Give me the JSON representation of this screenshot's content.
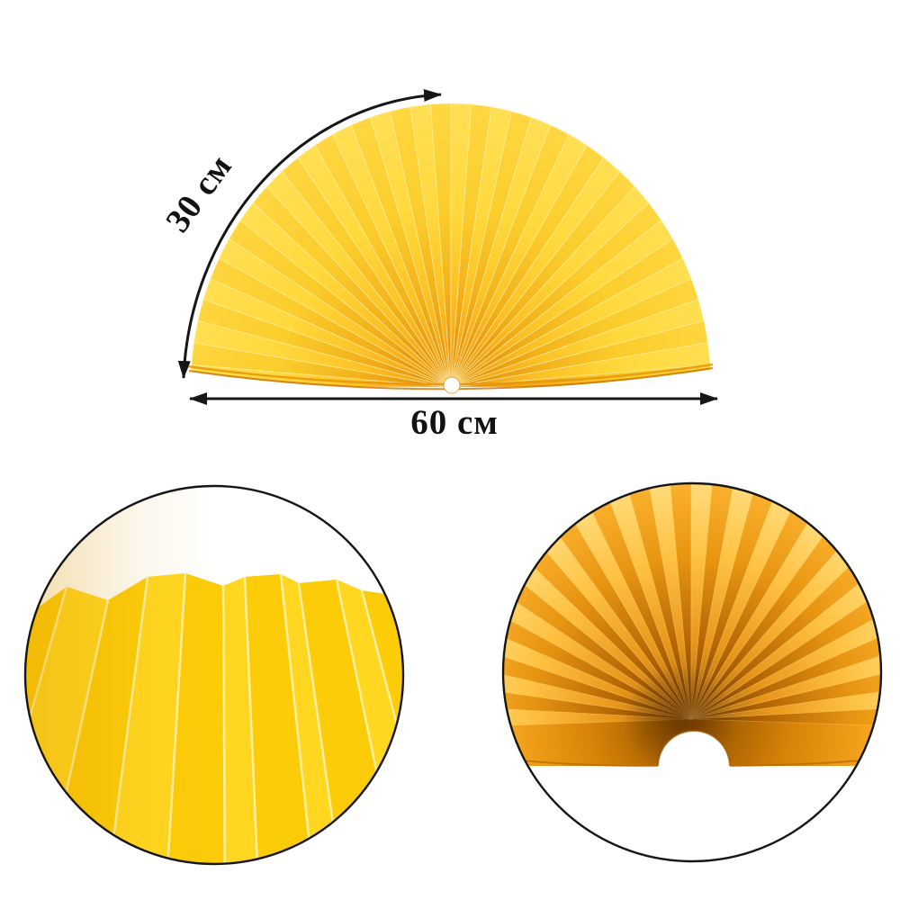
{
  "scene": {
    "background": "#ffffff"
  },
  "annotations": {
    "arc_label": "30 см",
    "width_label": "60 см"
  },
  "colors": {
    "arrow": "#161616",
    "circle_outline": "#161616",
    "fan_yellow_light": "#ffd93c",
    "fan_yellow_dark": "#fbcd2c",
    "fan_orange_center": "#ef940c",
    "fan_bottom_edge_dark": "#c96f02",
    "fan_bottom_edge_light": "#e8940a",
    "detail_left_yellow": "#ffd215",
    "detail_left_panel_dark": "#fccb08",
    "detail_left_panel_light": "#ffd722",
    "detail_left_crease": "#fff1a6",
    "detail_right_deep": "#6e3c00",
    "detail_right_mid": "#e8961a",
    "detail_right_light": "#ffc243",
    "notch_rim": "#a86200"
  }
}
